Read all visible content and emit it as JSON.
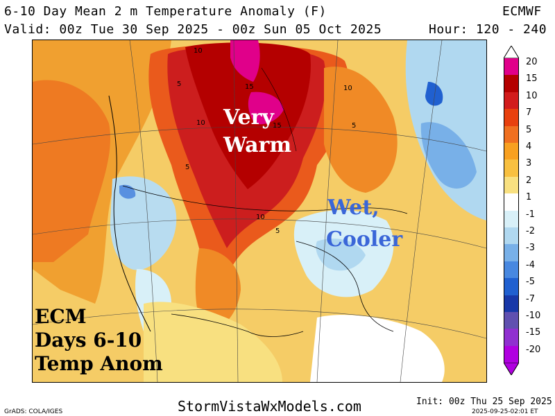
{
  "header": {
    "title": "6-10 Day Mean 2 m Temperature Anomaly (F)",
    "model": "ECMWF",
    "valid": "Valid: 00z Tue 30 Sep 2025 - 00z Sun 05 Oct 2025",
    "hour": "Hour: 120 - 240"
  },
  "annotations": {
    "very": "Very",
    "warm": "Warm",
    "wet": "Wet,",
    "cooler": "Cooler"
  },
  "caption": {
    "line1": "ECM",
    "line2": "Days 6-10",
    "line3": "Temp Anom"
  },
  "contour_labels": [
    "10",
    "5",
    "15",
    "10",
    "15",
    "5",
    "10",
    "5",
    "10",
    "5"
  ],
  "legend": {
    "levels": [
      "20",
      "15",
      "10",
      "7",
      "5",
      "4",
      "3",
      "2",
      "1",
      "-1",
      "-2",
      "-3",
      "-4",
      "-5",
      "-7",
      "-10",
      "-15",
      "-20"
    ],
    "colors": [
      "#e0008a",
      "#b40000",
      "#d21c1c",
      "#e8400e",
      "#f07020",
      "#f8a020",
      "#f8c040",
      "#f8e080",
      "#ffffff",
      "#d8f0f8",
      "#b0d8f0",
      "#78b0e8",
      "#4888e0",
      "#2060d0",
      "#1838a8",
      "#6050b0",
      "#9030d0",
      "#b000e0"
    ]
  },
  "footer": {
    "grads": "GrADS: COLA/IGES",
    "site": "StormVistaWxModels.com",
    "init": "Init: 00z Thu 25 Sep 2025",
    "timestamp": "2025-09-25-02:01 ET"
  }
}
